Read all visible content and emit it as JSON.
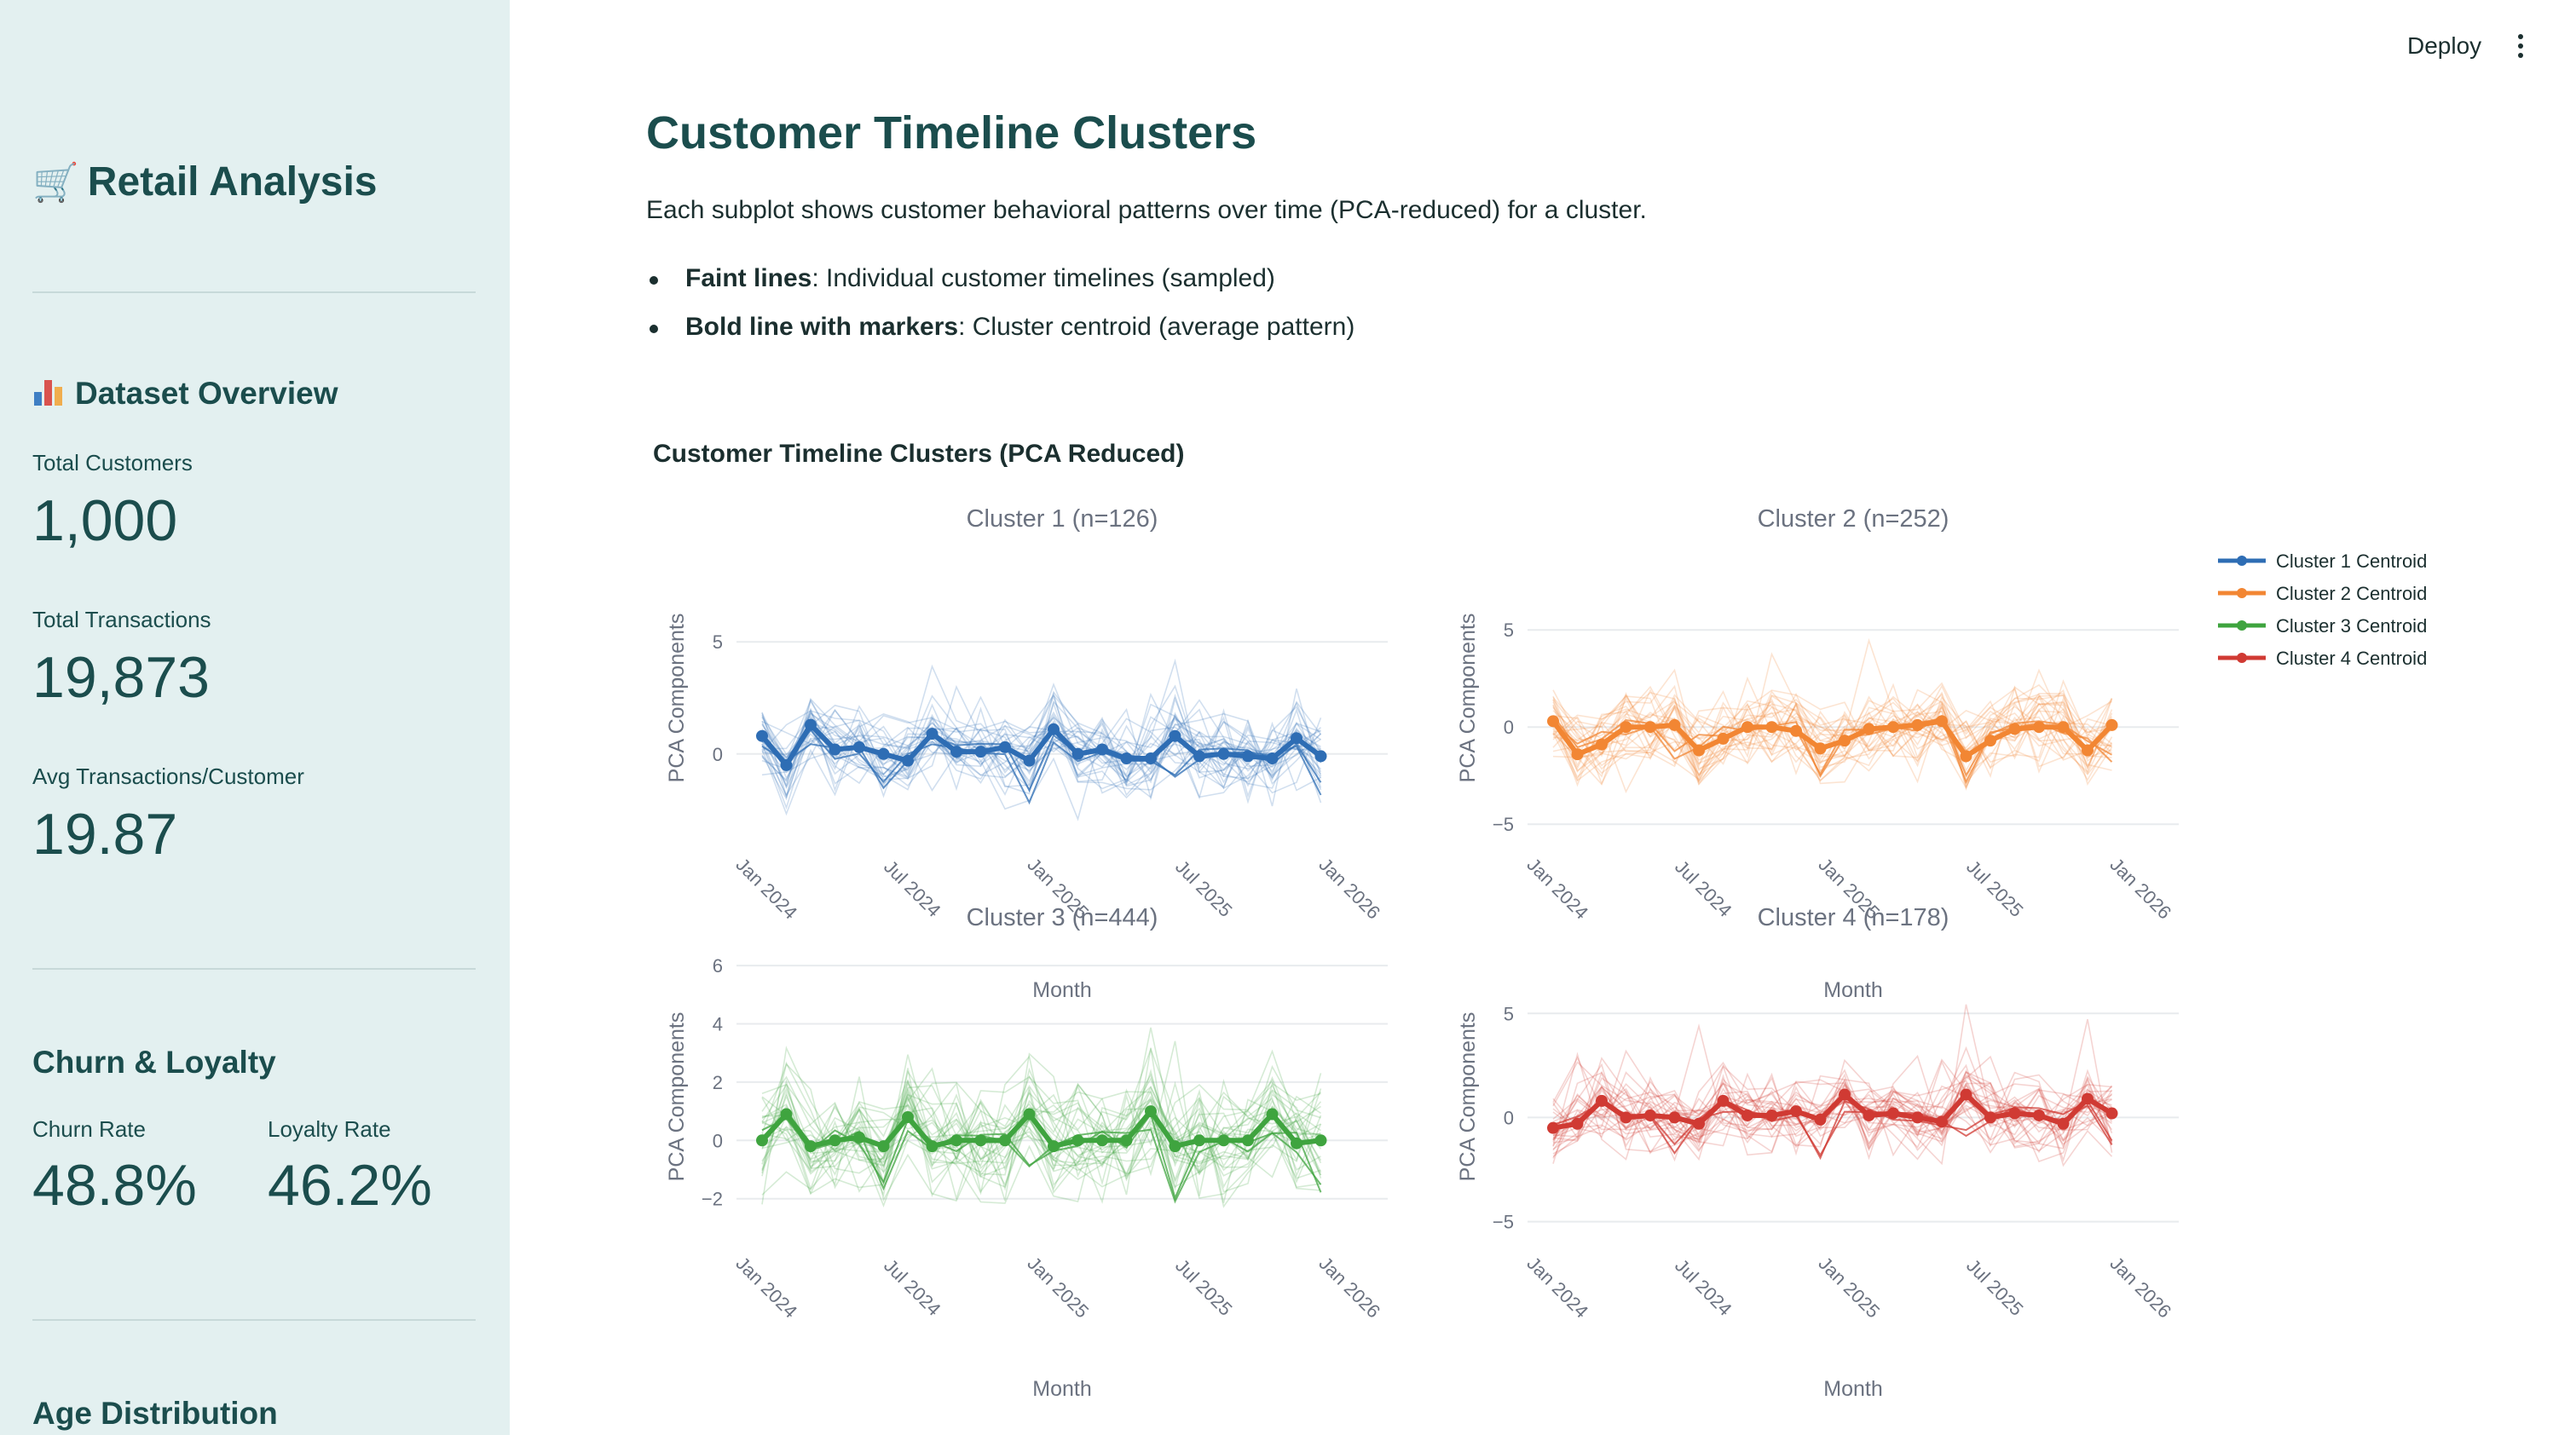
{
  "sidebar": {
    "title": "Retail Analysis",
    "title_icon": "shopping-cart-icon",
    "dataset_overview": {
      "heading": "Dataset Overview",
      "heading_icon": "bar-chart-icon",
      "total_customers_label": "Total Customers",
      "total_customers_value": "1,000",
      "total_transactions_label": "Total Transactions",
      "total_transactions_value": "19,873",
      "avg_transactions_label": "Avg Transactions/Customer",
      "avg_transactions_value": "19.87"
    },
    "churn_loyalty": {
      "heading": "Churn & Loyalty",
      "churn_label": "Churn Rate",
      "churn_value": "48.8%",
      "loyalty_label": "Loyalty Rate",
      "loyalty_value": "46.2%"
    },
    "age_distribution": {
      "heading": "Age Distribution"
    }
  },
  "header": {
    "deploy_label": "Deploy",
    "menu_icon": "more-vertical-icon"
  },
  "main": {
    "title": "Customer Timeline Clusters",
    "description": "Each subplot shows customer behavioral patterns over time (PCA-reduced) for a cluster.",
    "bullets": [
      {
        "bold": "Faint lines",
        "text": ": Individual customer timelines (sampled)"
      },
      {
        "bold": "Bold line with markers",
        "text": ": Cluster centroid (average pattern)"
      }
    ]
  },
  "chart_data": {
    "type": "line",
    "title": "Customer Timeline Clusters (PCA Reduced)",
    "xlabel": "Month",
    "ylabel": "PCA Components",
    "x_ticks": [
      "Jan 2024",
      "Jul 2024",
      "Jan 2025",
      "Jul 2025",
      "Jan 2026"
    ],
    "x": [
      "2024-01",
      "2024-02",
      "2024-03",
      "2024-04",
      "2024-05",
      "2024-06",
      "2024-07",
      "2024-08",
      "2024-09",
      "2024-10",
      "2024-11",
      "2024-12",
      "2025-01",
      "2025-02",
      "2025-03",
      "2025-04",
      "2025-05",
      "2025-06",
      "2025-07",
      "2025-08",
      "2025-09",
      "2025-10",
      "2025-11",
      "2025-12"
    ],
    "legend": [
      "Cluster 1 Centroid",
      "Cluster 2 Centroid",
      "Cluster 3 Centroid",
      "Cluster 4 Centroid"
    ],
    "legend_position": "top-right",
    "subplots": [
      {
        "title": "Cluster 1 (n=126)",
        "color": "#2e6db4",
        "ylim": [
          -4,
          9
        ],
        "yticks": [
          0,
          5
        ],
        "centroid": [
          0.8,
          -0.5,
          1.3,
          0.2,
          0.3,
          0.0,
          -0.3,
          0.9,
          0.1,
          0.1,
          0.3,
          -0.3,
          1.1,
          0.0,
          0.2,
          -0.2,
          -0.2,
          0.8,
          -0.1,
          0.0,
          -0.1,
          -0.2,
          0.7,
          -0.1
        ]
      },
      {
        "title": "Cluster 2 (n=252)",
        "color": "#f28633",
        "ylim": [
          -6,
          9
        ],
        "yticks": [
          -5,
          0,
          5
        ],
        "centroid": [
          0.3,
          -1.4,
          -0.9,
          0.0,
          0.0,
          0.1,
          -1.2,
          -0.6,
          0.0,
          0.0,
          -0.2,
          -1.1,
          -0.7,
          -0.1,
          0.0,
          0.1,
          0.3,
          -1.5,
          -0.7,
          -0.1,
          0.0,
          0.0,
          -1.2,
          0.1
        ]
      },
      {
        "title": "Cluster 3 (n=444)",
        "color": "#3fa43f",
        "ylim": [
          -3.5,
          6.5
        ],
        "yticks": [
          -2,
          0,
          2,
          4,
          6
        ],
        "centroid": [
          0.0,
          0.9,
          -0.2,
          0.0,
          0.1,
          -0.2,
          0.8,
          -0.2,
          0.0,
          0.0,
          0.0,
          0.9,
          -0.2,
          0.0,
          0.0,
          0.0,
          1.0,
          -0.2,
          0.0,
          0.0,
          0.0,
          0.9,
          -0.1,
          0.0
        ]
      },
      {
        "title": "Cluster 4 (n=178)",
        "color": "#d03a33",
        "ylim": [
          -6,
          8
        ],
        "yticks": [
          -5,
          0,
          5
        ],
        "centroid": [
          -0.5,
          -0.3,
          0.8,
          0.0,
          0.1,
          0.0,
          -0.3,
          0.8,
          0.1,
          0.1,
          0.3,
          -0.1,
          1.1,
          0.1,
          0.2,
          0.0,
          -0.2,
          1.1,
          0.0,
          0.2,
          0.1,
          -0.3,
          0.9,
          0.2
        ]
      }
    ]
  }
}
